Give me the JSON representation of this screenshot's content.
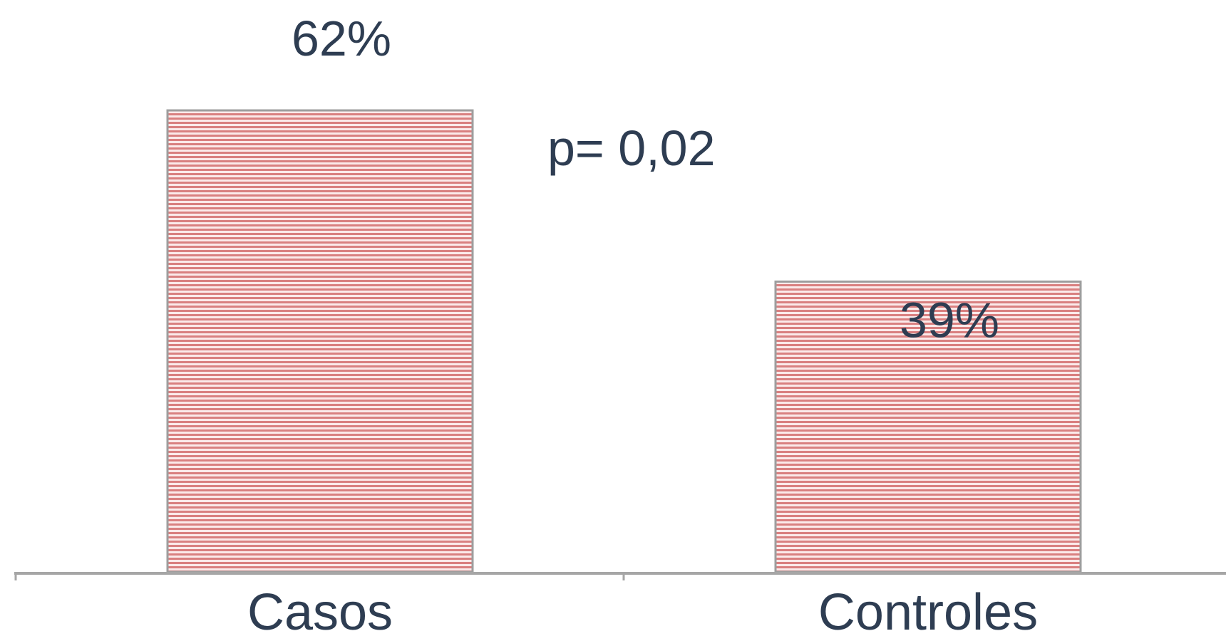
{
  "chart_data": {
    "type": "bar",
    "categories": [
      "Casos",
      "Controles"
    ],
    "values": [
      62,
      39
    ],
    "data_labels": [
      "62%",
      "39%"
    ],
    "annotation": "p= 0,02",
    "ylim": [
      0,
      62
    ],
    "grid": false,
    "legend": "none",
    "colors": {
      "bar_fill": "#d98080",
      "bar_stripe": "#fbeaea",
      "bar_border": "#9e9e9e",
      "axis": "#a6a6a6",
      "text": "#2e3d52"
    }
  }
}
